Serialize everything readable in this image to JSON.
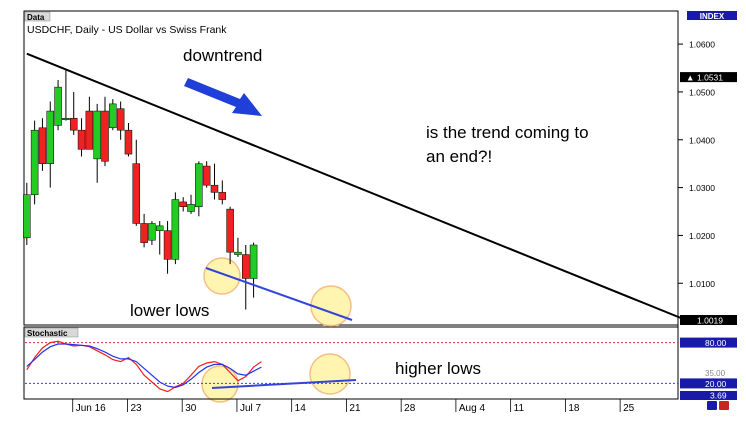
{
  "window": {
    "tag_data": "Data",
    "tag_stochastic": "Stochastic",
    "index_label": "INDEX",
    "nav_icons": [
      "zoom-in-icon",
      "zoom-out-icon"
    ]
  },
  "colors": {
    "bull": "#22cc22",
    "bear": "#ee2222",
    "trendline": "#000000",
    "arrow": "#1f3fd8",
    "blue_line": "#3344dd",
    "circle_fill": "#fff3a8",
    "circle_stroke": "#f5b878",
    "stoch_k": "#ee2222",
    "stoch_d": "#2233ee",
    "level_80": "#cc3333",
    "level_20": "#3344cc",
    "last_price_bg": "#000000",
    "level_box_bg": "#1a1aa8"
  },
  "annotations": {
    "downtrend": "downtrend",
    "question_line1": "is the trend coming to",
    "question_line2": "an end?!",
    "lower_lows": "lower lows",
    "higher_lows": "higher lows"
  },
  "chart_data": [
    {
      "type": "candlestick",
      "title": "USDCHF, Daily - US Dollar vs Swiss Frank",
      "ylim": [
        1.0019,
        1.0665
      ],
      "y_ticks": [
        1.06,
        1.05,
        1.04,
        1.03,
        1.02,
        1.01
      ],
      "y_tick_labels": [
        "1.0600",
        "1.0500",
        "1.0400",
        "1.0300",
        "1.0200",
        "1.0100"
      ],
      "last_price": 1.0531,
      "last_price_label": "1.0531",
      "bottom_price_label": "1.0019",
      "x_tick_labels": [
        "Jun 16",
        "23",
        "30",
        "Jul 7",
        "14",
        "21",
        "28",
        "Aug 4",
        "11",
        "18",
        "25"
      ],
      "candles": [
        {
          "o": 1.0195,
          "h": 1.031,
          "l": 1.018,
          "c": 1.0285
        },
        {
          "o": 1.0285,
          "h": 1.044,
          "l": 1.0265,
          "c": 1.042
        },
        {
          "o": 1.0425,
          "h": 1.0445,
          "l": 1.0335,
          "c": 1.035
        },
        {
          "o": 1.035,
          "h": 1.048,
          "l": 1.03,
          "c": 1.046
        },
        {
          "o": 1.043,
          "h": 1.0525,
          "l": 1.042,
          "c": 1.051
        },
        {
          "o": 1.0445,
          "h": 1.0545,
          "l": 1.044,
          "c": 1.0445
        },
        {
          "o": 1.0445,
          "h": 1.05,
          "l": 1.041,
          "c": 1.042
        },
        {
          "o": 1.042,
          "h": 1.0445,
          "l": 1.0365,
          "c": 1.038
        },
        {
          "o": 1.046,
          "h": 1.049,
          "l": 1.038,
          "c": 1.038
        },
        {
          "o": 1.036,
          "h": 1.0475,
          "l": 1.031,
          "c": 1.046
        },
        {
          "o": 1.046,
          "h": 1.049,
          "l": 1.0345,
          "c": 1.0355
        },
        {
          "o": 1.0425,
          "h": 1.0485,
          "l": 1.042,
          "c": 1.0475
        },
        {
          "o": 1.0465,
          "h": 1.048,
          "l": 1.04,
          "c": 1.042
        },
        {
          "o": 1.042,
          "h": 1.0435,
          "l": 1.0365,
          "c": 1.037
        },
        {
          "o": 1.035,
          "h": 1.04,
          "l": 1.022,
          "c": 1.0225
        },
        {
          "o": 1.0225,
          "h": 1.0245,
          "l": 1.0175,
          "c": 1.0185
        },
        {
          "o": 1.019,
          "h": 1.023,
          "l": 1.018,
          "c": 1.0225
        },
        {
          "o": 1.021,
          "h": 1.023,
          "l": 1.016,
          "c": 1.022
        },
        {
          "o": 1.021,
          "h": 1.023,
          "l": 1.012,
          "c": 1.015
        },
        {
          "o": 1.015,
          "h": 1.029,
          "l": 1.014,
          "c": 1.0275
        },
        {
          "o": 1.027,
          "h": 1.028,
          "l": 1.025,
          "c": 1.026
        },
        {
          "o": 1.025,
          "h": 1.0285,
          "l": 1.0245,
          "c": 1.0265
        },
        {
          "o": 1.026,
          "h": 1.0355,
          "l": 1.024,
          "c": 1.035
        },
        {
          "o": 1.0345,
          "h": 1.0355,
          "l": 1.03,
          "c": 1.0305
        },
        {
          "o": 1.0305,
          "h": 1.035,
          "l": 1.0275,
          "c": 1.029
        },
        {
          "o": 1.029,
          "h": 1.0315,
          "l": 1.0265,
          "c": 1.0275
        },
        {
          "o": 1.0255,
          "h": 1.026,
          "l": 1.014,
          "c": 1.0165
        },
        {
          "o": 1.016,
          "h": 1.0195,
          "l": 1.0155,
          "c": 1.0165
        },
        {
          "o": 1.016,
          "h": 1.018,
          "l": 1.0045,
          "c": 1.011
        },
        {
          "o": 1.011,
          "h": 1.0185,
          "l": 1.007,
          "c": 1.018
        }
      ],
      "trendline": {
        "from": {
          "candle": 0,
          "price": 1.058
        },
        "to": {
          "candle": 84,
          "price": 1.0025
        }
      }
    },
    {
      "type": "line",
      "title": "Stochastic",
      "ylim": [
        0,
        100
      ],
      "levels": [
        80,
        20
      ],
      "level_labels": [
        "80.00",
        "20.00"
      ],
      "current_value_label": "3.69",
      "obscured_label_fragment": "35.00",
      "series": [
        {
          "values": [
            40,
            58,
            72,
            80,
            82,
            78,
            75,
            76,
            74,
            68,
            62,
            55,
            52,
            58,
            48,
            32,
            22,
            12,
            8,
            15,
            20,
            32,
            45,
            50,
            52,
            48,
            36,
            24,
            30,
            44,
            52
          ]
        },
        {
          "values": [
            45,
            55,
            66,
            74,
            78,
            78,
            77,
            76,
            75,
            71,
            66,
            60,
            56,
            56,
            52,
            42,
            32,
            22,
            16,
            14,
            18,
            26,
            36,
            44,
            48,
            48,
            42,
            34,
            32,
            38,
            44
          ]
        }
      ]
    }
  ]
}
